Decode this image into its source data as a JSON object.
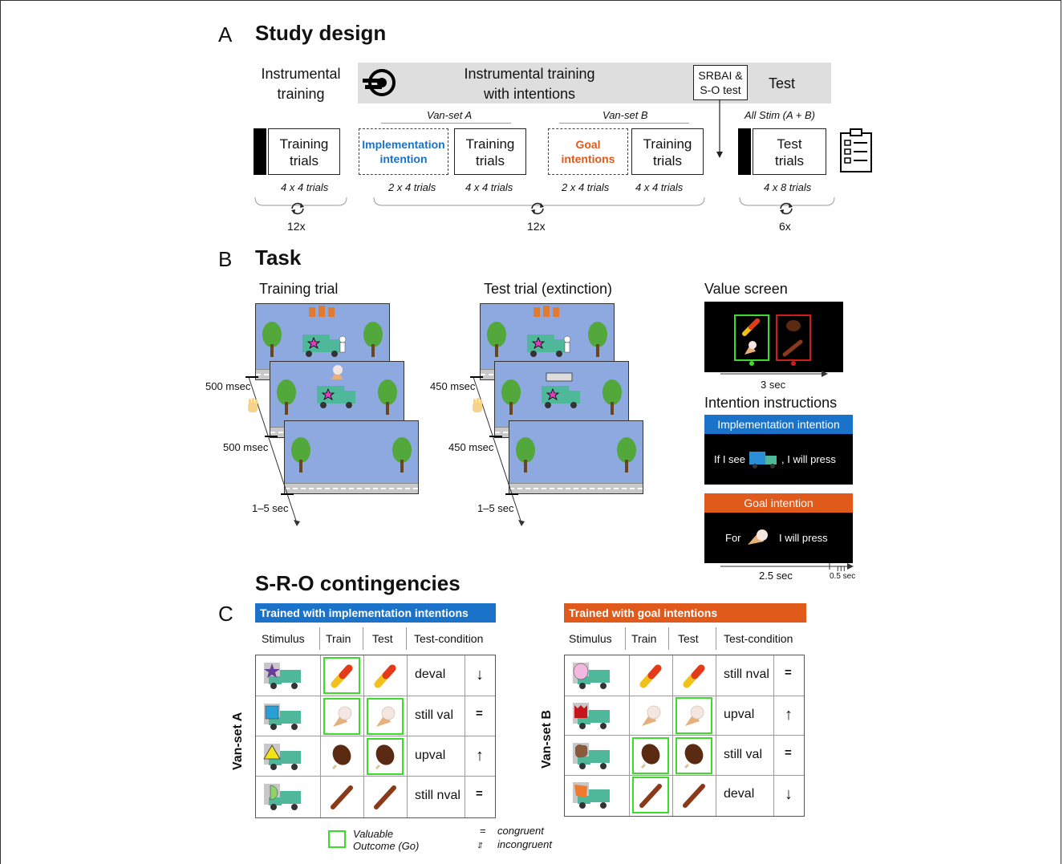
{
  "panel_a": {
    "letter": "A",
    "title": "Study design",
    "phase1_title_line1": "Instrumental",
    "phase1_title_line2": "training",
    "phase2_title_line1": "Instrumental training",
    "phase2_title_line2": "with intentions",
    "srbai_line1": "SRBAI &",
    "srbai_line2": "S-O test",
    "test_title": "Test",
    "van_set_a": "Van-set A",
    "van_set_b": "Van-set B",
    "all_stim": "All Stim (A + B)",
    "training_trials_line1": "Training",
    "training_trials_line2": "trials",
    "impl_line1": "Implementation",
    "impl_line2": "intention",
    "goal_line1": "Goal",
    "goal_line2": "intentions",
    "test_trials_line1": "Test",
    "test_trials_line2": "trials",
    "trials_4x4": "4 x 4 trials",
    "trials_2x4": "2 x 4 trials",
    "trials_4x8": "4 x 8 trials",
    "rep_12x": "12x",
    "rep_6x": "6x",
    "colors": {
      "impl": "#1a73c8",
      "goal": "#e05a1c"
    }
  },
  "panel_b": {
    "letter": "B",
    "title": "Task",
    "training_trial": "Training trial",
    "test_trial": "Test trial (extinction)",
    "value_screen": "Value screen",
    "t_500": "500 msec",
    "t_450": "450 msec",
    "t_1_5": "1–5 sec",
    "t_3sec": "3 sec",
    "intention_instructions": "Intention instructions",
    "impl_header": "Implementation intention",
    "impl_text_pre": "If I see",
    "impl_text_post": ", I will press",
    "goal_header": "Goal intention",
    "goal_text_pre": "For",
    "goal_text_post": "I will press",
    "t_2_5": "2.5 sec",
    "iti": "ITI",
    "t_0_5": "0.5 sec"
  },
  "panel_c": {
    "letter": "C",
    "title": "S-R-O contingencies",
    "left_banner": "Trained with implementation intentions",
    "right_banner": "Trained with goal intentions",
    "headers": [
      "Stimulus",
      "Train",
      "Test",
      "Test-condition"
    ],
    "left_side_label": "Van-set A",
    "right_side_label": "Van-set B",
    "left_rows": [
      {
        "stim": "star",
        "stim_color": "#6a3d9a",
        "train": "popsicle",
        "train_valuable": true,
        "test": "popsicle",
        "test_valuable": false,
        "cond": "deval",
        "arrow": "↓"
      },
      {
        "stim": "square",
        "stim_color": "#2a9fd6",
        "train": "cone",
        "train_valuable": true,
        "test": "cone",
        "test_valuable": true,
        "cond": "still val",
        "arrow": "="
      },
      {
        "stim": "triangle",
        "stim_color": "#f2e21a",
        "train": "bar",
        "train_valuable": false,
        "test": "bar",
        "test_valuable": true,
        "cond": "upval",
        "arrow": "↑"
      },
      {
        "stim": "halfmoon",
        "stim_color": "#8fd16a",
        "train": "stick",
        "train_valuable": false,
        "test": "stick",
        "test_valuable": false,
        "cond": "still nval",
        "arrow": "="
      }
    ],
    "right_rows": [
      {
        "stim": "circle",
        "stim_color": "#f2b8e0",
        "train": "popsicle",
        "train_valuable": false,
        "test": "popsicle",
        "test_valuable": false,
        "cond": "still nval",
        "arrow": "="
      },
      {
        "stim": "crown",
        "stim_color": "#c4161c",
        "train": "cone",
        "train_valuable": false,
        "test": "cone",
        "test_valuable": true,
        "cond": "upval",
        "arrow": "↑"
      },
      {
        "stim": "blob",
        "stim_color": "#8a5a3c",
        "train": "bar",
        "train_valuable": true,
        "test": "bar",
        "test_valuable": true,
        "cond": "still val",
        "arrow": "="
      },
      {
        "stim": "flag",
        "stim_color": "#f07a30",
        "train": "stick",
        "train_valuable": true,
        "test": "stick",
        "test_valuable": false,
        "cond": "deval",
        "arrow": "↓"
      }
    ],
    "legend_valuable_line1": "Valuable",
    "legend_valuable_line2": "Outcome (Go)",
    "legend_eq": "=",
    "legend_congruent": "congruent",
    "legend_arrows": "↓↑",
    "legend_incongruent": "incongruent",
    "valuable_color": "#3bdc2a"
  }
}
